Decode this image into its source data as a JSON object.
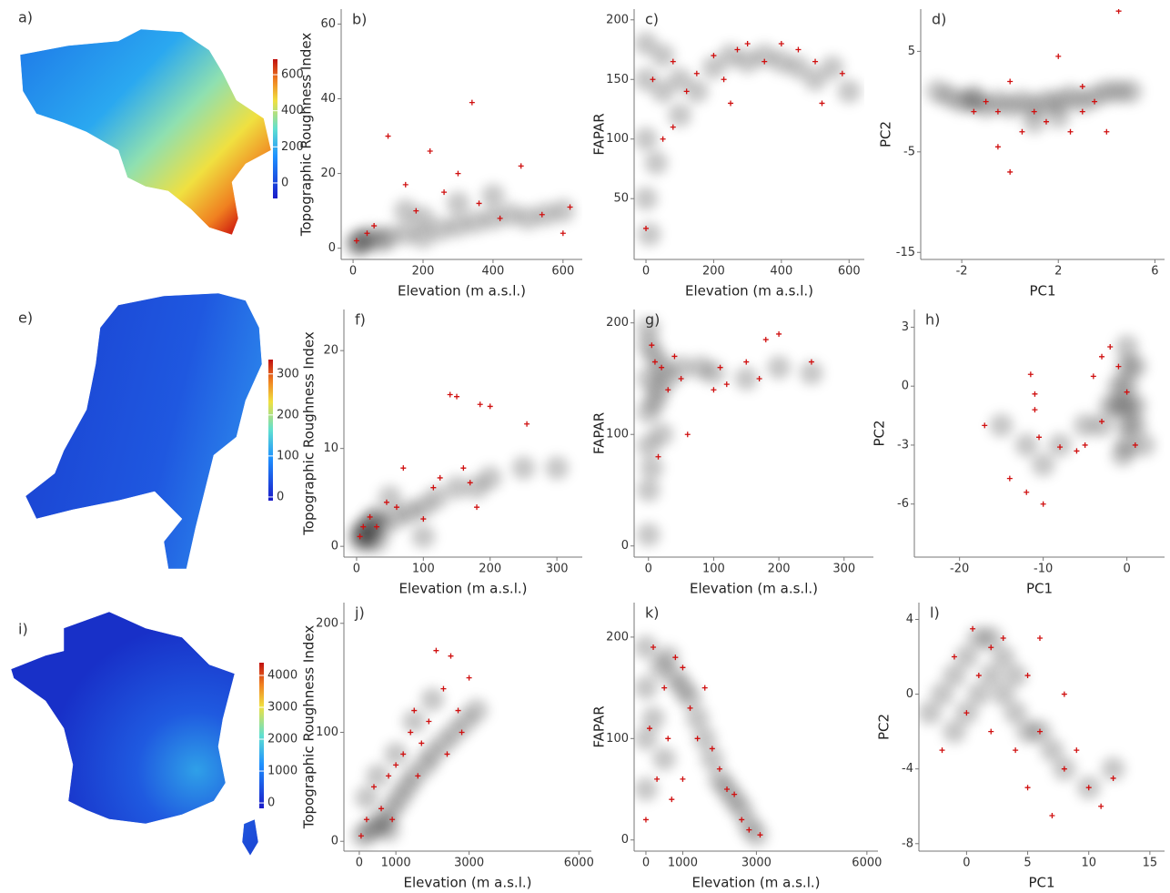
{
  "chart_data": [
    {
      "type": "map",
      "label": "a)",
      "colorbar_lim": [
        -86,
        686
      ],
      "colorbar_ticks": [
        0,
        200,
        400,
        600
      ]
    },
    {
      "type": "scatter",
      "label": "b)",
      "xlabel": "Elevation (m a.s.l.)",
      "ylabel": "Topographic Roughness Index",
      "xlim": [
        -34,
        655
      ],
      "ylim": [
        -3,
        64
      ],
      "xticks": [
        0,
        200,
        400,
        600
      ],
      "yticks": [
        0,
        20,
        40,
        60
      ],
      "series": [
        {
          "color": "#000000",
          "marker": "cloud",
          "x": [
            10,
            20,
            30,
            50,
            80,
            100,
            150,
            200,
            250,
            300,
            350,
            400,
            450,
            500,
            550,
            600,
            300,
            400,
            200,
            150
          ],
          "values": [
            1,
            2,
            1.5,
            3,
            2,
            3,
            4,
            3,
            5,
            6,
            7,
            8,
            9,
            8,
            9,
            10,
            12,
            14,
            8,
            10
          ]
        },
        {
          "color": "#d01010",
          "marker": "plus",
          "x": [
            10,
            40,
            100,
            150,
            180,
            220,
            260,
            300,
            340,
            360,
            420,
            480,
            540,
            600,
            620,
            60
          ],
          "values": [
            2,
            4,
            30,
            17,
            10,
            26,
            15,
            20,
            39,
            12,
            8,
            22,
            9,
            4,
            11,
            6
          ]
        }
      ]
    },
    {
      "type": "scatter",
      "label": "c)",
      "xlabel": "Elevation (m a.s.l.)",
      "ylabel": "FAPAR",
      "xlim": [
        -35,
        645
      ],
      "ylim": [
        -1,
        209
      ],
      "xticks": [
        0,
        200,
        400,
        600
      ],
      "yticks": [
        50,
        100,
        150,
        200
      ],
      "series": [
        {
          "color": "#000000",
          "marker": "cloud",
          "x": [
            0,
            0,
            0,
            0,
            50,
            50,
            100,
            100,
            150,
            200,
            250,
            300,
            350,
            400,
            450,
            500,
            550,
            600,
            30,
            10
          ],
          "values": [
            150,
            100,
            50,
            180,
            140,
            170,
            150,
            120,
            140,
            160,
            170,
            165,
            170,
            165,
            160,
            150,
            160,
            140,
            80,
            20
          ]
        },
        {
          "color": "#d01010",
          "marker": "plus",
          "x": [
            0,
            20,
            50,
            80,
            120,
            150,
            200,
            230,
            270,
            300,
            350,
            400,
            450,
            500,
            520,
            580,
            250,
            80
          ],
          "values": [
            25,
            150,
            100,
            165,
            140,
            155,
            170,
            150,
            175,
            180,
            165,
            180,
            175,
            165,
            130,
            155,
            130,
            110
          ]
        }
      ]
    },
    {
      "type": "scatter",
      "label": "d)",
      "xlabel": "PC1",
      "ylabel": "PC2",
      "xlim": [
        -3.7,
        6.4
      ],
      "ylim": [
        -15.7,
        9.2
      ],
      "xticks": [
        -2,
        2,
        6
      ],
      "yticks": [
        -15,
        -5,
        5
      ],
      "series": [
        {
          "color": "#000000",
          "marker": "cloud",
          "x": [
            -3,
            -2.5,
            -2,
            -1.5,
            -1,
            -1.5,
            -0.5,
            0,
            0.5,
            1,
            1.5,
            2,
            2.5,
            3,
            3.5,
            4,
            4.5,
            5,
            1,
            2
          ],
          "values": [
            1,
            0.5,
            0,
            0,
            -0.5,
            0.5,
            0,
            -0.5,
            0,
            -0.5,
            0,
            0,
            0.5,
            0,
            0.5,
            1,
            1,
            1,
            -2,
            -1.5
          ]
        },
        {
          "color": "#d01010",
          "marker": "plus",
          "x": [
            -1,
            -0.5,
            0,
            0.5,
            -0.5,
            1,
            1.5,
            2,
            2.5,
            3,
            3.5,
            4,
            4.5,
            -1.5,
            0,
            3
          ],
          "values": [
            0,
            -1,
            2,
            -3,
            -4.5,
            -1,
            -2,
            4.5,
            -3,
            -1,
            0,
            -3,
            9,
            -1,
            -7,
            1.5
          ]
        }
      ]
    },
    {
      "type": "map",
      "label": "e)",
      "colorbar_lim": [
        -9,
        335
      ],
      "colorbar_ticks": [
        0,
        100,
        200,
        300
      ]
    },
    {
      "type": "scatter",
      "label": "f)",
      "xlabel": "Elevation (m a.s.l.)",
      "ylabel": "Topographic Roughness Index",
      "xlim": [
        -19,
        338
      ],
      "ylim": [
        -1.1,
        24.2
      ],
      "xticks": [
        0,
        100,
        200,
        300
      ],
      "yticks": [
        0,
        10,
        20
      ],
      "series": [
        {
          "color": "#000000",
          "marker": "cloud",
          "x": [
            5,
            10,
            15,
            20,
            25,
            30,
            40,
            60,
            80,
            100,
            120,
            150,
            180,
            200,
            250,
            300,
            50,
            10,
            30,
            100
          ],
          "values": [
            1,
            1.5,
            2,
            1,
            2.5,
            3,
            2,
            3,
            3.5,
            4,
            5,
            6,
            6,
            7,
            8,
            8,
            5,
            0.5,
            0.5,
            1
          ]
        },
        {
          "color": "#d01010",
          "marker": "plus",
          "x": [
            5,
            10,
            20,
            30,
            45,
            70,
            100,
            115,
            125,
            140,
            150,
            160,
            170,
            180,
            185,
            200,
            255,
            60
          ],
          "values": [
            1,
            2,
            3,
            2,
            4.5,
            8,
            2.8,
            6,
            7,
            15.5,
            15.3,
            8,
            6.5,
            4,
            14.5,
            14.3,
            12.5,
            4
          ]
        }
      ]
    },
    {
      "type": "scatter",
      "label": "g)",
      "xlabel": "Elevation (m a.s.l.)",
      "ylabel": "FAPAR",
      "xlim": [
        -22,
        345
      ],
      "ylim": [
        -10,
        212
      ],
      "xticks": [
        0,
        100,
        200,
        300
      ],
      "yticks": [
        0,
        100,
        200
      ],
      "series": [
        {
          "color": "#000000",
          "marker": "cloud",
          "x": [
            0,
            0,
            0,
            0,
            0,
            0,
            0,
            10,
            10,
            20,
            20,
            30,
            50,
            80,
            100,
            150,
            200,
            250,
            5,
            15
          ],
          "values": [
            10,
            50,
            90,
            120,
            150,
            180,
            195,
            170,
            130,
            160,
            100,
            150,
            160,
            160,
            155,
            150,
            160,
            155,
            70,
            140
          ]
        },
        {
          "color": "#d01010",
          "marker": "plus",
          "x": [
            5,
            10,
            20,
            30,
            40,
            50,
            15,
            100,
            120,
            150,
            170,
            180,
            200,
            250,
            110,
            60
          ],
          "values": [
            180,
            165,
            160,
            140,
            170,
            150,
            80,
            140,
            145,
            165,
            150,
            185,
            190,
            165,
            160,
            100
          ]
        }
      ]
    },
    {
      "type": "scatter",
      "label": "h)",
      "xlabel": "PC1",
      "ylabel": "PC2",
      "xlim": [
        -25.4,
        4.5
      ],
      "ylim": [
        -8.7,
        3.9
      ],
      "xticks": [
        -20,
        -10,
        0
      ],
      "yticks": [
        -6,
        -3,
        0,
        3
      ],
      "series": [
        {
          "color": "#000000",
          "marker": "cloud",
          "x": [
            0,
            0,
            0,
            0,
            0,
            0,
            1,
            1,
            2,
            -1,
            -1,
            -2,
            -3,
            -5,
            -8,
            -10,
            -12,
            -15,
            1,
            -0.5
          ],
          "values": [
            2,
            1,
            0,
            -1,
            -2,
            -3,
            -1,
            -2,
            -3,
            0,
            -1,
            -1,
            -2,
            -2,
            -3,
            -4,
            -3,
            -2,
            1,
            -3.5
          ]
        },
        {
          "color": "#d01010",
          "marker": "plus",
          "x": [
            -17,
            -14,
            -12,
            -11.5,
            -11,
            -11,
            -10.5,
            -10,
            -8,
            -5,
            -3,
            -2,
            -1,
            0,
            -3,
            -6,
            1,
            -4
          ],
          "values": [
            -2,
            -4.7,
            -5.4,
            0.6,
            -0.4,
            -1.2,
            -2.6,
            -6,
            -3.1,
            -3,
            -1.8,
            2,
            1,
            -0.3,
            1.5,
            -3.3,
            -3,
            0.5
          ]
        }
      ]
    },
    {
      "type": "map",
      "label": "i)",
      "colorbar_lim": [
        -170,
        4400
      ],
      "colorbar_ticks": [
        0,
        1000,
        2000,
        3000,
        4000
      ]
    },
    {
      "type": "scatter",
      "label": "j)",
      "xlabel": "Elevation (m a.s.l.)",
      "ylabel": "Topographic Roughness Index",
      "xlim": [
        -420,
        6340
      ],
      "ylim": [
        -9,
        219
      ],
      "xticks": [
        0,
        1000,
        3000,
        6000
      ],
      "yticks": [
        0,
        100,
        200
      ],
      "series": [
        {
          "color": "#000000",
          "marker": "cloud",
          "x": [
            100,
            300,
            500,
            700,
            900,
            1100,
            1300,
            1500,
            1800,
            2000,
            2300,
            2600,
            2900,
            3200,
            200,
            500,
            1000,
            1500,
            2000,
            800
          ],
          "values": [
            5,
            10,
            15,
            20,
            30,
            40,
            50,
            60,
            70,
            80,
            90,
            100,
            110,
            120,
            40,
            60,
            80,
            110,
            130,
            10
          ]
        },
        {
          "color": "#d01010",
          "marker": "plus",
          "x": [
            50,
            200,
            400,
            600,
            800,
            1000,
            1200,
            1400,
            1500,
            1700,
            1900,
            2100,
            2300,
            2500,
            2700,
            2800,
            3000,
            900,
            1600,
            2400
          ],
          "values": [
            5,
            20,
            50,
            30,
            60,
            70,
            80,
            100,
            120,
            90,
            110,
            175,
            140,
            170,
            120,
            100,
            150,
            20,
            60,
            80
          ]
        }
      ]
    },
    {
      "type": "scatter",
      "label": "k)",
      "xlabel": "Elevation (m a.s.l.)",
      "ylabel": "FAPAR",
      "xlim": [
        -320,
        6300
      ],
      "ylim": [
        -11,
        234
      ],
      "xticks": [
        0,
        1000,
        3000,
        6000
      ],
      "yticks": [
        0,
        100,
        200
      ],
      "series": [
        {
          "color": "#000000",
          "marker": "cloud",
          "x": [
            0,
            0,
            0,
            0,
            200,
            400,
            600,
            800,
            1000,
            1200,
            1400,
            1600,
            1800,
            2000,
            2200,
            2400,
            2600,
            2800,
            3000,
            500
          ],
          "values": [
            100,
            150,
            190,
            50,
            120,
            170,
            180,
            160,
            150,
            140,
            120,
            100,
            80,
            60,
            50,
            40,
            30,
            15,
            5,
            80
          ]
        },
        {
          "color": "#d01010",
          "marker": "plus",
          "x": [
            0,
            100,
            200,
            300,
            500,
            700,
            800,
            1000,
            1200,
            1400,
            1600,
            1800,
            2000,
            2200,
            2400,
            2600,
            2800,
            3100,
            600,
            1000
          ],
          "values": [
            20,
            110,
            190,
            60,
            150,
            40,
            180,
            170,
            130,
            100,
            150,
            90,
            70,
            50,
            45,
            20,
            10,
            5,
            100,
            60
          ]
        }
      ]
    },
    {
      "type": "scatter",
      "label": "l)",
      "xlabel": "PC1",
      "ylabel": "PC2",
      "xlim": [
        -3.9,
        16.2
      ],
      "ylim": [
        -8.4,
        4.9
      ],
      "xticks": [
        0,
        5,
        10,
        15
      ],
      "yticks": [
        -8,
        -4,
        0,
        4
      ],
      "series": [
        {
          "color": "#000000",
          "marker": "cloud",
          "x": [
            -3,
            -2,
            -1,
            0,
            1,
            2,
            3,
            0,
            1,
            2,
            3,
            4,
            5,
            6,
            7,
            8,
            10,
            12,
            -1,
            4
          ],
          "values": [
            -1,
            0,
            1,
            2,
            3,
            3,
            2,
            -1,
            0,
            1,
            0,
            -1,
            -2,
            -2,
            -3,
            -4,
            -5,
            -4,
            -2,
            1
          ]
        },
        {
          "color": "#d01010",
          "marker": "plus",
          "x": [
            -2,
            -1,
            0,
            0.5,
            1,
            2,
            3,
            4,
            5,
            5,
            6,
            7,
            8,
            9,
            10,
            11,
            12,
            2,
            6,
            8
          ],
          "values": [
            -3,
            2,
            -1,
            3.5,
            1,
            -2,
            3,
            -3,
            -5,
            1,
            -2,
            -6.5,
            -4,
            -3,
            -5,
            -6,
            -4.5,
            2.5,
            3,
            0
          ]
        }
      ]
    }
  ]
}
